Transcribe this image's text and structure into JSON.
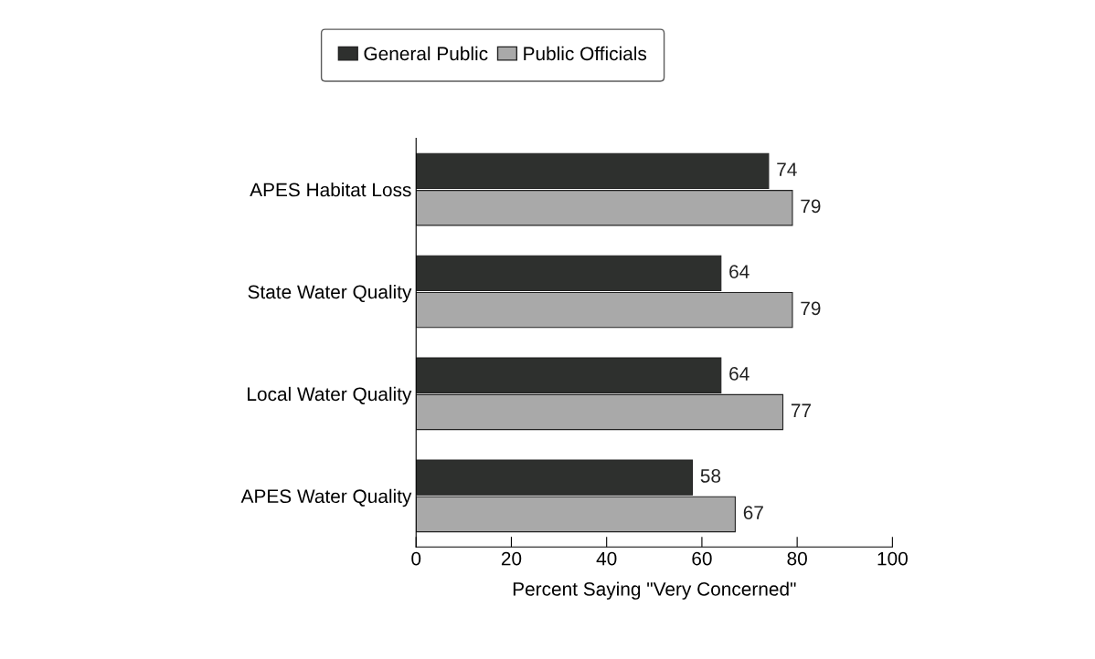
{
  "chart_data": {
    "type": "bar",
    "orientation": "horizontal",
    "categories": [
      "APES Habitat Loss",
      "State Water Quality",
      "Local Water Quality",
      "APES Water Quality"
    ],
    "series": [
      {
        "name": "General Public",
        "color": "#2e302e",
        "values": [
          74,
          64,
          64,
          58
        ]
      },
      {
        "name": "Public Officials",
        "color": "#a9a9a9",
        "values": [
          79,
          79,
          77,
          67
        ]
      }
    ],
    "xlabel": "Percent Saying \"Very Concerned\"",
    "xlim": [
      0,
      100
    ],
    "xticks": [
      0,
      20,
      40,
      60,
      80,
      100
    ],
    "data_labels": true,
    "grid": false,
    "legend": "top"
  }
}
